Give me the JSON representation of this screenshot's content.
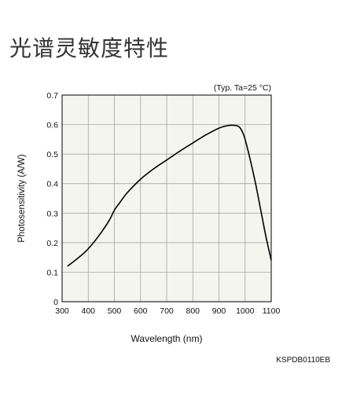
{
  "page": {
    "title": "光谱灵敏度特性",
    "code": "KSPDB0110EB"
  },
  "chart_data": {
    "type": "line",
    "title": "",
    "note": "(Typ. Ta=25 °C)",
    "xlabel": "Wavelength (nm)",
    "ylabel": "Photosensitivity (A/W)",
    "xlim": [
      300,
      1100
    ],
    "ylim": [
      0,
      0.7
    ],
    "x_ticks": [
      "300",
      "400",
      "500",
      "600",
      "700",
      "800",
      "900",
      "1000",
      "1100"
    ],
    "y_ticks": [
      "0",
      "0.1",
      "0.2",
      "0.3",
      "0.4",
      "0.5",
      "0.6",
      "0.7"
    ],
    "grid": true,
    "colors": {
      "line": "#000000",
      "grid": "#999999",
      "plot_bg": "#f5f5ef"
    },
    "series": [
      {
        "x": [
          320,
          350,
          390,
          420,
          450,
          480,
          500,
          520,
          550,
          600,
          650,
          700,
          750,
          800,
          850,
          900,
          930,
          950,
          970,
          980,
          990,
          1000,
          1020,
          1040,
          1060,
          1080,
          1100
        ],
        "y": [
          0.12,
          0.14,
          0.17,
          0.2,
          0.235,
          0.275,
          0.31,
          0.335,
          0.37,
          0.415,
          0.45,
          0.48,
          0.51,
          0.538,
          0.565,
          0.588,
          0.596,
          0.598,
          0.596,
          0.59,
          0.575,
          0.55,
          0.48,
          0.4,
          0.31,
          0.22,
          0.14
        ]
      }
    ]
  }
}
